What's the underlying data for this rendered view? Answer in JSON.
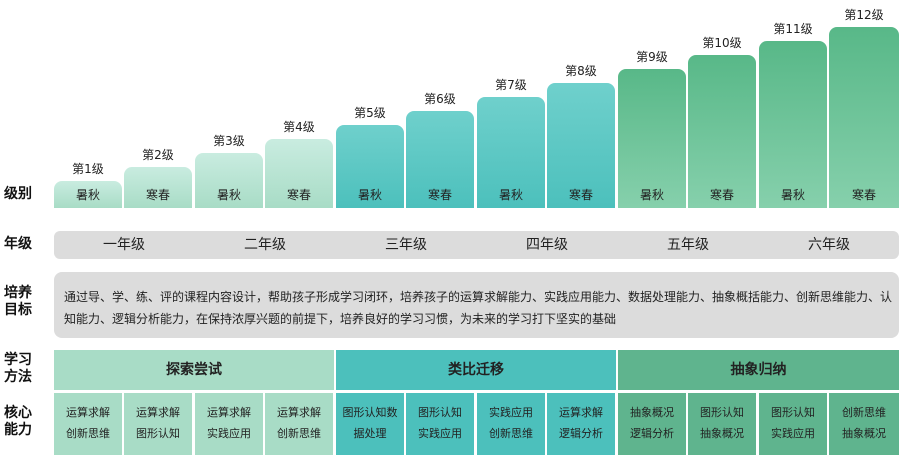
{
  "row_labels": {
    "level": "级别",
    "grade": "年级",
    "goal": [
      "培养",
      "目标"
    ],
    "method": [
      "学习",
      "方法"
    ],
    "core": [
      "核心",
      "能力"
    ]
  },
  "levels": [
    {
      "label": "第1级",
      "season": "暑秋"
    },
    {
      "label": "第2级",
      "season": "寒春"
    },
    {
      "label": "第3级",
      "season": "暑秋"
    },
    {
      "label": "第4级",
      "season": "寒春"
    },
    {
      "label": "第5级",
      "season": "暑秋"
    },
    {
      "label": "第6级",
      "season": "寒春"
    },
    {
      "label": "第7级",
      "season": "暑秋"
    },
    {
      "label": "第8级",
      "season": "寒春"
    },
    {
      "label": "第9级",
      "season": "暑秋"
    },
    {
      "label": "第10级",
      "season": "寒春"
    },
    {
      "label": "第11级",
      "season": "暑秋"
    },
    {
      "label": "第12级",
      "season": "寒春"
    }
  ],
  "grades": [
    "一年级",
    "二年级",
    "三年级",
    "四年级",
    "五年级",
    "六年级"
  ],
  "goal_text": "通过导、学、练、评的课程内容设计，帮助孩子形成学习闭环，培养孩子的运算求解能力、实践应用能力、数据处理能力、抽象概括能力、创新思维能力、认知能力、逻辑分析能力，在保持浓厚兴题的前提下，培养良好的学习习惯，为未来的学习打下坚实的基础",
  "methods": [
    "探索尝试",
    "类比迁移",
    "抽象归纳"
  ],
  "core_abilities": [
    [
      "运算求解",
      "创新思维"
    ],
    [
      "运算求解",
      "图形认知"
    ],
    [
      "运算求解",
      "实践应用"
    ],
    [
      "运算求解",
      "创新思维"
    ],
    [
      "图形认知数",
      "据处理"
    ],
    [
      "图形认知",
      "实践应用"
    ],
    [
      "实践应用",
      "创新思维"
    ],
    [
      "运算求解",
      "逻辑分析"
    ],
    [
      "抽象概况",
      "逻辑分析"
    ],
    [
      "图形认知",
      "抽象概况"
    ],
    [
      "图形认知",
      "实践应用"
    ],
    [
      "创新思维",
      "抽象概况"
    ]
  ],
  "colors": {
    "green_light": "#a8dcc6",
    "teal": "#4cc0bc",
    "green_dark": "#5fb48e",
    "grey_band": "#dcdcdc"
  }
}
